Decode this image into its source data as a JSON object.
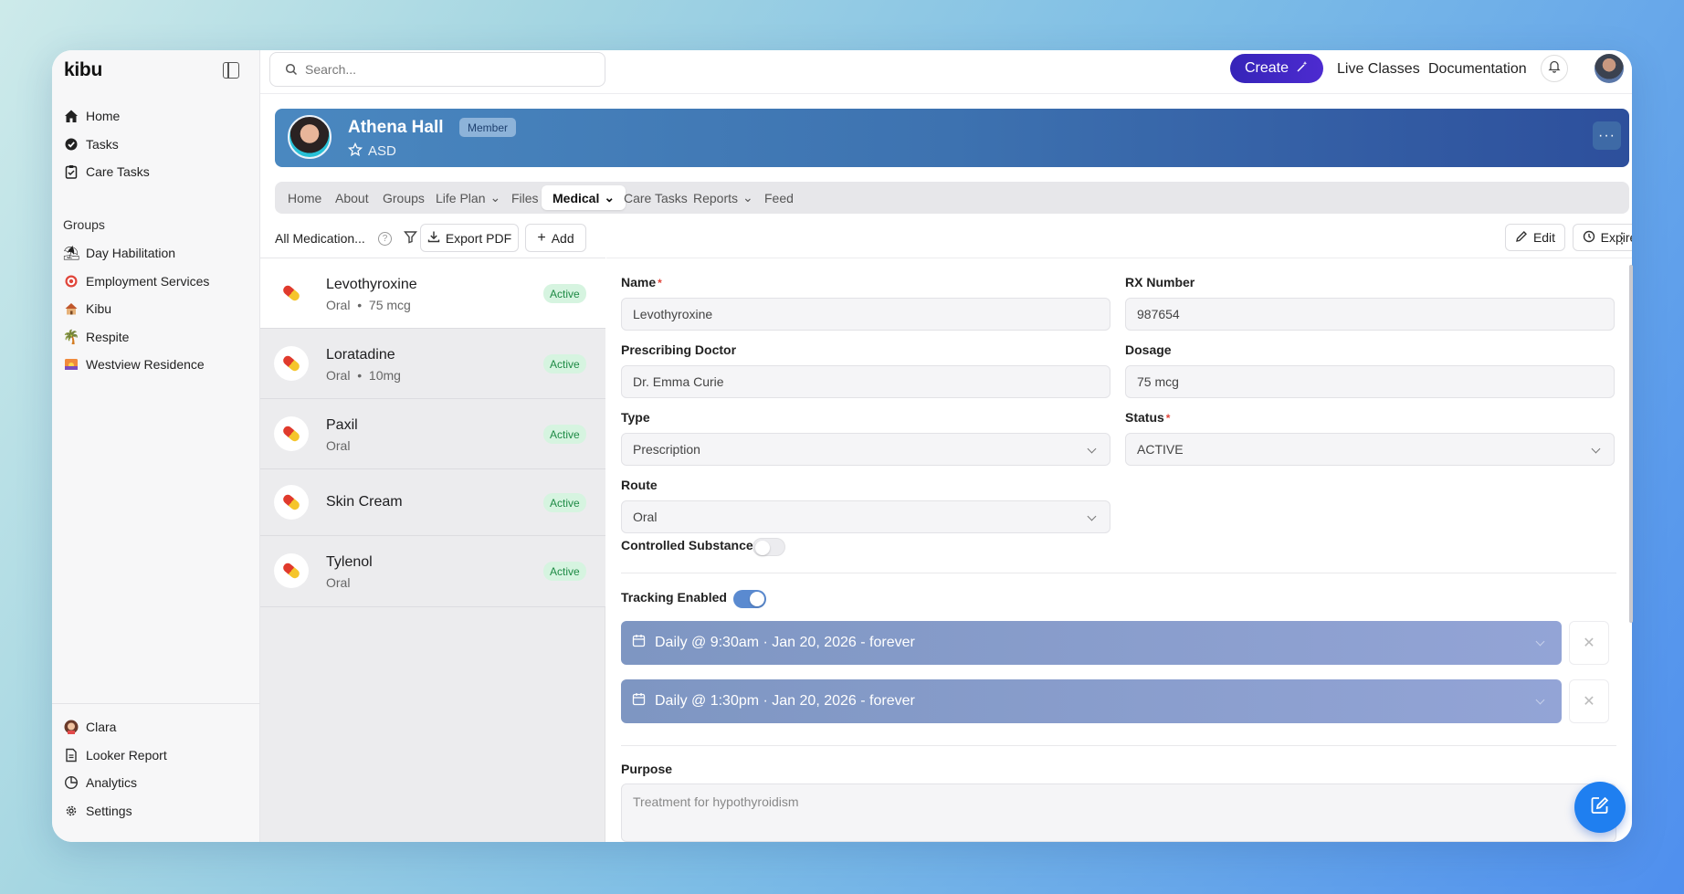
{
  "app": {
    "logo": "kibu"
  },
  "sidebar": {
    "main_items": [
      {
        "label": "Home",
        "icon": "home-icon"
      },
      {
        "label": "Tasks",
        "icon": "tasks-icon"
      },
      {
        "label": "Care Tasks",
        "icon": "clipboard-icon"
      }
    ],
    "groups_heading": "Groups",
    "groups": [
      {
        "label": "Day Habilitation",
        "icon": "beach-icon"
      },
      {
        "label": "Employment Services",
        "icon": "target-icon"
      },
      {
        "label": "Kibu",
        "icon": "house-icon"
      },
      {
        "label": "Respite",
        "icon": "palm-tree-icon"
      },
      {
        "label": "Westview Residence",
        "icon": "sunset-icon"
      }
    ],
    "bottom_items": [
      {
        "label": "Clara",
        "icon": "avatar-icon"
      },
      {
        "label": "Looker Report",
        "icon": "document-icon"
      },
      {
        "label": "Analytics",
        "icon": "chart-icon"
      },
      {
        "label": "Settings",
        "icon": "gear-icon"
      }
    ]
  },
  "topbar": {
    "search_placeholder": "Search...",
    "create_label": "Create",
    "live_classes": "Live Classes",
    "documentation": "Documentation"
  },
  "profile": {
    "name": "Athena Hall",
    "badge": "Member",
    "tag": "ASD"
  },
  "tabs": [
    "Home",
    "About",
    "Groups",
    "Life Plan",
    "Files",
    "Medical",
    "Care Tasks",
    "Reports",
    "Feed"
  ],
  "list": {
    "filter_label": "All Medication...",
    "export_label": "Export PDF",
    "add_label": "Add",
    "medications": [
      {
        "name": "Levothyroxine",
        "route": "Oral",
        "dose": "75 mcg",
        "status": "Active"
      },
      {
        "name": "Loratadine",
        "route": "Oral",
        "dose": "10mg",
        "status": "Active"
      },
      {
        "name": "Paxil",
        "route": "Oral",
        "dose": "",
        "status": "Active"
      },
      {
        "name": "Skin Cream",
        "route": "",
        "dose": "",
        "status": "Active"
      },
      {
        "name": "Tylenol",
        "route": "Oral",
        "dose": "",
        "status": "Active"
      }
    ]
  },
  "detail": {
    "edit_label": "Edit",
    "expire_label": "Expire",
    "fields": {
      "name": {
        "label": "Name",
        "value": "Levothyroxine"
      },
      "rx": {
        "label": "RX Number",
        "value": "987654"
      },
      "doctor": {
        "label": "Prescribing Doctor",
        "value": "Dr. Emma Curie"
      },
      "dosage": {
        "label": "Dosage",
        "value": "75 mcg"
      },
      "type": {
        "label": "Type",
        "value": "Prescription"
      },
      "status": {
        "label": "Status",
        "value": "ACTIVE"
      },
      "route": {
        "label": "Route",
        "value": "Oral"
      }
    },
    "controlled_label": "Controlled Substance",
    "tracking_label": "Tracking Enabled",
    "schedules": [
      "Daily @ 9:30am · Jan 20, 2026 - forever",
      "Daily @ 1:30pm · Jan 20, 2026 - forever"
    ],
    "purpose_label": "Purpose",
    "purpose_placeholder": "Treatment for hypothyroidism"
  },
  "colors": {
    "accent": "#3524b8",
    "header_blue": "#3d72b0",
    "active_green": "#1e8a45",
    "fab": "#1f7ff0"
  }
}
